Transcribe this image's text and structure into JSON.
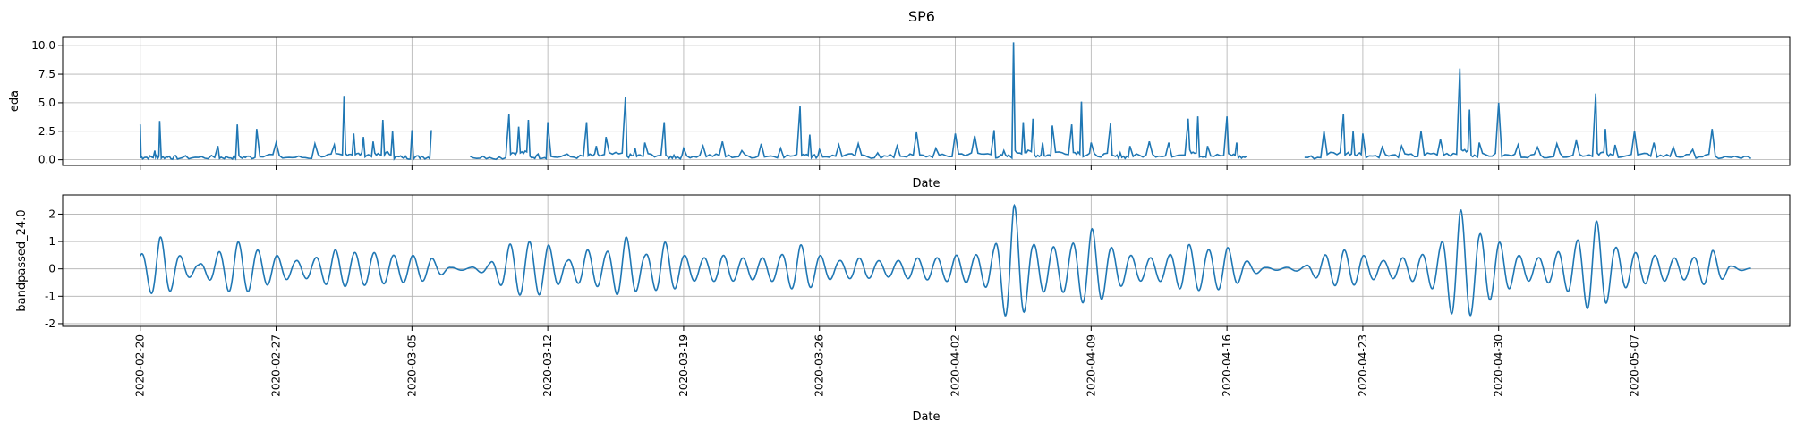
{
  "chart_data": [
    {
      "type": "line",
      "title": "SP6",
      "xlabel": "Date",
      "ylabel": "eda",
      "x_ticks": [
        "2020-02-20",
        "2020-02-27",
        "2020-03-05",
        "2020-03-12",
        "2020-03-19",
        "2020-03-26",
        "2020-04-02",
        "2020-04-09",
        "2020-04-16",
        "2020-04-23",
        "2020-04-30",
        "2020-05-07"
      ],
      "xlim": [
        "2020-02-16",
        "2020-05-15"
      ],
      "ylim": [
        -0.5,
        10.8
      ],
      "y_ticks": [
        "0.0",
        "2.5",
        "5.0",
        "7.5",
        "10.0"
      ],
      "grid": true,
      "series": [
        {
          "color": "#1f77b4",
          "gaps": [
            [
              "2020-03-06",
              "2020-03-08"
            ],
            [
              "2020-04-17",
              "2020-04-20"
            ]
          ],
          "points": [
            [
              "2020-02-20",
              3.1
            ],
            [
              "2020-02-20T06",
              0.2
            ],
            [
              "2020-02-20T18",
              0.8
            ],
            [
              "2020-02-21",
              3.4
            ],
            [
              "2020-02-21T12",
              0.3
            ],
            [
              "2020-02-22",
              0.1
            ],
            [
              "2020-02-23",
              0.2
            ],
            [
              "2020-02-24",
              1.2
            ],
            [
              "2020-02-24T12",
              0.2
            ],
            [
              "2020-02-25",
              3.1
            ],
            [
              "2020-02-25T12",
              0.3
            ],
            [
              "2020-02-26",
              2.7
            ],
            [
              "2020-02-27",
              1.5
            ],
            [
              "2020-02-28",
              0.2
            ],
            [
              "2020-02-29",
              1.4
            ],
            [
              "2020-03-01",
              1.3
            ],
            [
              "2020-03-01T12",
              5.6
            ],
            [
              "2020-03-02",
              2.3
            ],
            [
              "2020-03-02T12",
              2.0
            ],
            [
              "2020-03-03",
              1.6
            ],
            [
              "2020-03-03T12",
              3.5
            ],
            [
              "2020-03-04",
              2.5
            ],
            [
              "2020-03-04T12",
              0.2
            ],
            [
              "2020-03-05",
              2.6
            ],
            [
              "2020-03-05T12",
              0.3
            ],
            [
              "2020-03-06",
              2.6
            ],
            [
              "2020-03-08",
              0.3
            ],
            [
              "2020-03-09",
              0.2
            ],
            [
              "2020-03-10",
              4.0
            ],
            [
              "2020-03-10T12",
              2.9
            ],
            [
              "2020-03-11",
              3.5
            ],
            [
              "2020-03-11T12",
              0.5
            ],
            [
              "2020-03-12",
              3.3
            ],
            [
              "2020-03-13",
              0.5
            ],
            [
              "2020-03-14",
              3.3
            ],
            [
              "2020-03-14T12",
              1.2
            ],
            [
              "2020-03-15",
              2.0
            ],
            [
              "2020-03-16",
              5.5
            ],
            [
              "2020-03-16T12",
              1.0
            ],
            [
              "2020-03-17",
              1.5
            ],
            [
              "2020-03-18",
              3.3
            ],
            [
              "2020-03-18T12",
              0.4
            ],
            [
              "2020-03-19",
              1.0
            ],
            [
              "2020-03-20",
              1.2
            ],
            [
              "2020-03-21",
              1.6
            ],
            [
              "2020-03-22",
              0.8
            ],
            [
              "2020-03-23",
              1.4
            ],
            [
              "2020-03-24",
              1.0
            ],
            [
              "2020-03-25",
              4.7
            ],
            [
              "2020-03-25T12",
              2.2
            ],
            [
              "2020-03-26",
              0.9
            ],
            [
              "2020-03-27",
              1.3
            ],
            [
              "2020-03-28",
              1.4
            ],
            [
              "2020-03-29",
              0.6
            ],
            [
              "2020-03-30",
              1.2
            ],
            [
              "2020-03-31",
              2.4
            ],
            [
              "2020-04-01",
              1.0
            ],
            [
              "2020-04-02",
              2.3
            ],
            [
              "2020-04-03",
              2.1
            ],
            [
              "2020-04-04",
              2.6
            ],
            [
              "2020-04-04T12",
              0.8
            ],
            [
              "2020-04-05",
              10.3
            ],
            [
              "2020-04-05T12",
              3.3
            ],
            [
              "2020-04-06",
              3.6
            ],
            [
              "2020-04-06T12",
              1.5
            ],
            [
              "2020-04-07",
              3.0
            ],
            [
              "2020-04-08",
              3.1
            ],
            [
              "2020-04-08T12",
              5.1
            ],
            [
              "2020-04-09",
              1.5
            ],
            [
              "2020-04-10",
              3.2
            ],
            [
              "2020-04-10T12",
              0.6
            ],
            [
              "2020-04-11",
              1.2
            ],
            [
              "2020-04-12",
              1.6
            ],
            [
              "2020-04-13",
              1.5
            ],
            [
              "2020-04-14",
              3.6
            ],
            [
              "2020-04-14T12",
              3.8
            ],
            [
              "2020-04-15",
              1.2
            ],
            [
              "2020-04-16",
              3.8
            ],
            [
              "2020-04-16T12",
              1.5
            ],
            [
              "2020-04-17",
              0.3
            ],
            [
              "2020-04-20",
              0.2
            ],
            [
              "2020-04-21",
              2.5
            ],
            [
              "2020-04-22",
              4.0
            ],
            [
              "2020-04-22T12",
              2.5
            ],
            [
              "2020-04-23",
              2.3
            ],
            [
              "2020-04-24",
              1.1
            ],
            [
              "2020-04-25",
              1.2
            ],
            [
              "2020-04-26",
              2.5
            ],
            [
              "2020-04-27",
              1.8
            ],
            [
              "2020-04-28",
              8.0
            ],
            [
              "2020-04-28T12",
              4.4
            ],
            [
              "2020-04-29",
              1.5
            ],
            [
              "2020-04-30",
              5.0
            ],
            [
              "2020-05-01",
              1.3
            ],
            [
              "2020-05-02",
              1.1
            ],
            [
              "2020-05-03",
              1.4
            ],
            [
              "2020-05-04",
              1.7
            ],
            [
              "2020-05-05",
              5.8
            ],
            [
              "2020-05-05T12",
              2.7
            ],
            [
              "2020-05-06",
              1.3
            ],
            [
              "2020-05-07",
              2.5
            ],
            [
              "2020-05-08",
              1.5
            ],
            [
              "2020-05-09",
              1.1
            ],
            [
              "2020-05-10",
              0.9
            ],
            [
              "2020-05-11",
              2.7
            ],
            [
              "2020-05-12",
              0.2
            ],
            [
              "2020-05-13",
              0.1
            ]
          ]
        }
      ]
    },
    {
      "type": "line",
      "xlabel": "Date",
      "ylabel": "bandpassed_24.0",
      "x_ticks": [
        "2020-02-20",
        "2020-02-27",
        "2020-03-05",
        "2020-03-12",
        "2020-03-19",
        "2020-03-26",
        "2020-04-02",
        "2020-04-09",
        "2020-04-16",
        "2020-04-23",
        "2020-04-30",
        "2020-05-07"
      ],
      "xlim": [
        "2020-02-16",
        "2020-05-15"
      ],
      "ylim": [
        -2.1,
        2.7
      ],
      "y_ticks": [
        "-2",
        "-1",
        "0",
        "1",
        "2"
      ],
      "grid": true,
      "series": [
        {
          "color": "#1f77b4",
          "envelope": [
            [
              "2020-02-20",
              0.5
            ],
            [
              "2020-02-21",
              1.2
            ],
            [
              "2020-02-22",
              0.5
            ],
            [
              "2020-02-23",
              0.15
            ],
            [
              "2020-02-24",
              0.6
            ],
            [
              "2020-02-25",
              1.0
            ],
            [
              "2020-02-26",
              0.7
            ],
            [
              "2020-02-27",
              0.5
            ],
            [
              "2020-02-28",
              0.3
            ],
            [
              "2020-02-29",
              0.4
            ],
            [
              "2020-03-01",
              0.7
            ],
            [
              "2020-03-02",
              0.6
            ],
            [
              "2020-03-03",
              0.6
            ],
            [
              "2020-03-04",
              0.5
            ],
            [
              "2020-03-05",
              0.5
            ],
            [
              "2020-03-06",
              0.4
            ],
            [
              "2020-03-07",
              0.05
            ],
            [
              "2020-03-08",
              0.05
            ],
            [
              "2020-03-09",
              0.2
            ],
            [
              "2020-03-10",
              0.9
            ],
            [
              "2020-03-11",
              1.0
            ],
            [
              "2020-03-12",
              0.9
            ],
            [
              "2020-03-13",
              0.3
            ],
            [
              "2020-03-14",
              0.7
            ],
            [
              "2020-03-15",
              0.6
            ],
            [
              "2020-03-16",
              1.2
            ],
            [
              "2020-03-17",
              0.5
            ],
            [
              "2020-03-18",
              1.0
            ],
            [
              "2020-03-19",
              0.5
            ],
            [
              "2020-03-20",
              0.4
            ],
            [
              "2020-03-21",
              0.5
            ],
            [
              "2020-03-22",
              0.4
            ],
            [
              "2020-03-23",
              0.4
            ],
            [
              "2020-03-24",
              0.5
            ],
            [
              "2020-03-25",
              0.9
            ],
            [
              "2020-03-26",
              0.5
            ],
            [
              "2020-03-27",
              0.3
            ],
            [
              "2020-03-28",
              0.4
            ],
            [
              "2020-03-29",
              0.3
            ],
            [
              "2020-03-30",
              0.3
            ],
            [
              "2020-03-31",
              0.4
            ],
            [
              "2020-04-01",
              0.4
            ],
            [
              "2020-04-02",
              0.5
            ],
            [
              "2020-04-03",
              0.5
            ],
            [
              "2020-04-04",
              0.8
            ],
            [
              "2020-04-05",
              2.4
            ],
            [
              "2020-04-06",
              0.9
            ],
            [
              "2020-04-07",
              0.8
            ],
            [
              "2020-04-08",
              0.9
            ],
            [
              "2020-04-09",
              1.5
            ],
            [
              "2020-04-10",
              0.8
            ],
            [
              "2020-04-11",
              0.5
            ],
            [
              "2020-04-12",
              0.4
            ],
            [
              "2020-04-13",
              0.5
            ],
            [
              "2020-04-14",
              0.9
            ],
            [
              "2020-04-15",
              0.7
            ],
            [
              "2020-04-16",
              0.8
            ],
            [
              "2020-04-17",
              0.3
            ],
            [
              "2020-04-18",
              0.05
            ],
            [
              "2020-04-19",
              0.05
            ],
            [
              "2020-04-20",
              0.1
            ],
            [
              "2020-04-21",
              0.5
            ],
            [
              "2020-04-22",
              0.7
            ],
            [
              "2020-04-23",
              0.5
            ],
            [
              "2020-04-24",
              0.3
            ],
            [
              "2020-04-25",
              0.4
            ],
            [
              "2020-04-26",
              0.5
            ],
            [
              "2020-04-27",
              0.9
            ],
            [
              "2020-04-28",
              2.2
            ],
            [
              "2020-04-29",
              1.3
            ],
            [
              "2020-04-30",
              1.0
            ],
            [
              "2020-05-01",
              0.5
            ],
            [
              "2020-05-02",
              0.4
            ],
            [
              "2020-05-03",
              0.6
            ],
            [
              "2020-05-04",
              1.0
            ],
            [
              "2020-05-05",
              1.8
            ],
            [
              "2020-05-06",
              0.8
            ],
            [
              "2020-05-07",
              0.6
            ],
            [
              "2020-05-08",
              0.5
            ],
            [
              "2020-05-09",
              0.4
            ],
            [
              "2020-05-10",
              0.4
            ],
            [
              "2020-05-11",
              0.7
            ],
            [
              "2020-05-12",
              0.1
            ],
            [
              "2020-05-13",
              0.02
            ]
          ]
        }
      ]
    }
  ]
}
